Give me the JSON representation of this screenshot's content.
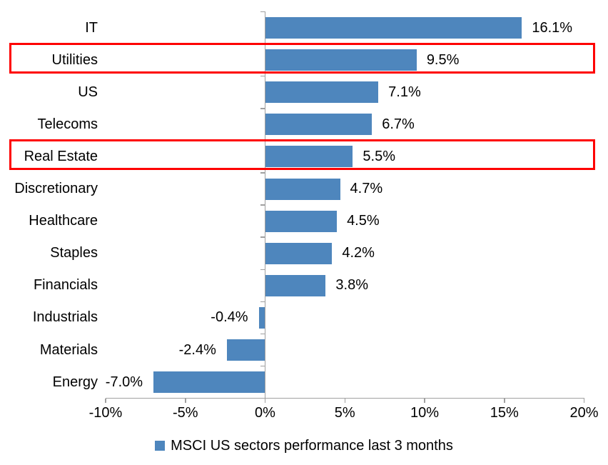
{
  "chart_data": {
    "type": "bar",
    "orientation": "horizontal",
    "categories": [
      "IT",
      "Utilities",
      "US",
      "Telecoms",
      "Real Estate",
      "Discretionary",
      "Healthcare",
      "Staples",
      "Financials",
      "Industrials",
      "Materials",
      "Energy"
    ],
    "values": [
      16.1,
      9.5,
      7.1,
      6.7,
      5.5,
      4.7,
      4.5,
      4.2,
      3.8,
      -0.4,
      -2.4,
      -7.0
    ],
    "value_labels": [
      "16.1%",
      "9.5%",
      "7.1%",
      "6.7%",
      "5.5%",
      "4.7%",
      "4.5%",
      "4.2%",
      "3.8%",
      "-0.4%",
      "-2.4%",
      "-7.0%"
    ],
    "highlighted_categories": [
      "Utilities",
      "Real Estate"
    ],
    "x_ticks": [
      -10,
      -5,
      0,
      5,
      10,
      15,
      20
    ],
    "x_tick_labels": [
      "-10%",
      "-5%",
      "0%",
      "5%",
      "10%",
      "15%",
      "20%"
    ],
    "xlim": [
      -10,
      20
    ],
    "legend": "MSCI US sectors performance last 3 months",
    "legend_position": "bottom",
    "grid": false,
    "title": "",
    "xlabel": "",
    "ylabel": "",
    "colors": {
      "bar": "#4e86bd",
      "highlight_box": "#fe0000",
      "axis": "#a0a0a0",
      "text": "#000000",
      "background": "#ffffff"
    }
  }
}
